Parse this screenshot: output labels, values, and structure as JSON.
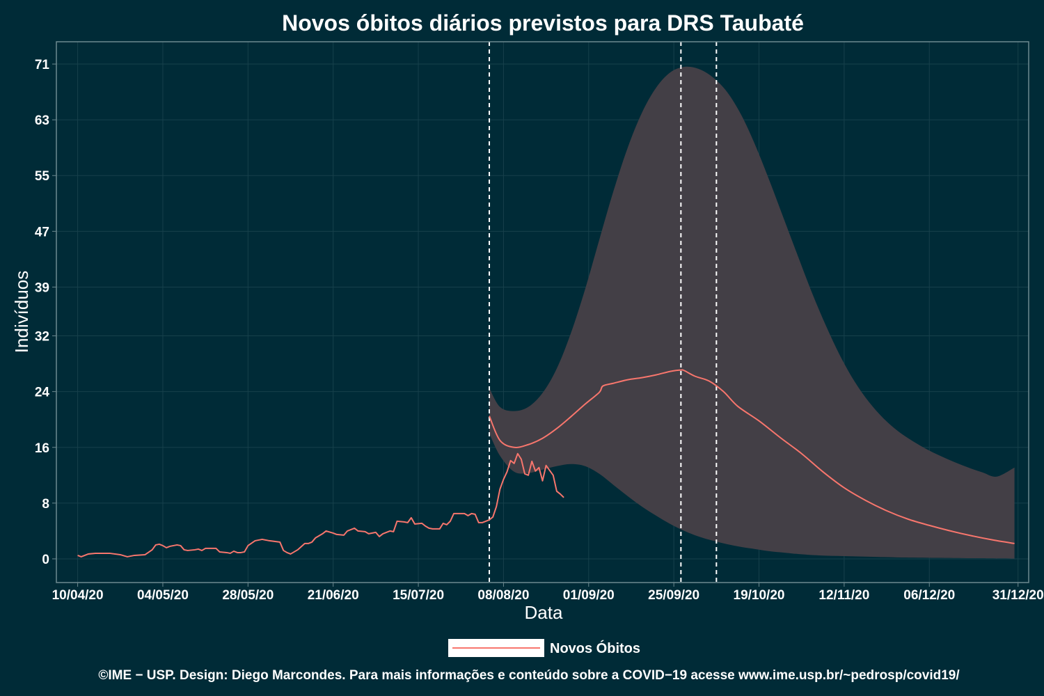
{
  "chart_data": {
    "type": "line",
    "title": "Novos óbitos diários previstos para DRS Taubaté",
    "xlabel": "Data",
    "ylabel": "Indivíduos",
    "x_tick_labels": [
      "10/04/20",
      "04/05/20",
      "28/05/20",
      "21/06/20",
      "15/07/20",
      "08/08/20",
      "01/09/20",
      "25/09/20",
      "19/10/20",
      "12/11/20",
      "06/12/20",
      "31/12/20"
    ],
    "y_ticks": [
      0,
      8,
      16,
      24,
      32,
      39,
      47,
      55,
      63,
      71
    ],
    "ylim": [
      -3.4,
      74.2
    ],
    "xlim": [
      "2020-04-04",
      "2021-01-03"
    ],
    "grid": true,
    "legend_position": "bottom",
    "vlines": [
      "2020-08-04",
      "2020-09-27",
      "2020-10-07"
    ],
    "colors": {
      "background": "#002b37",
      "line": "#f8766d",
      "band": "#433f46",
      "grid": "#17404b",
      "vline": "#ffffff"
    },
    "series": [
      {
        "name": "Novos Óbitos",
        "kind": "observed",
        "points": [
          [
            "2020-04-10",
            0.5
          ],
          [
            "2020-04-11",
            0.3
          ],
          [
            "2020-04-13",
            0.7
          ],
          [
            "2020-04-15",
            0.8
          ],
          [
            "2020-04-19",
            0.8
          ],
          [
            "2020-04-22",
            0.6
          ],
          [
            "2020-04-24",
            0.3
          ],
          [
            "2020-04-26",
            0.5
          ],
          [
            "2020-04-29",
            0.6
          ],
          [
            "2020-05-01",
            1.3
          ],
          [
            "2020-05-02",
            2.0
          ],
          [
            "2020-05-03",
            2.1
          ],
          [
            "2020-05-04",
            1.9
          ],
          [
            "2020-05-05",
            1.6
          ],
          [
            "2020-05-06",
            1.8
          ],
          [
            "2020-05-08",
            2.0
          ],
          [
            "2020-05-09",
            1.9
          ],
          [
            "2020-05-10",
            1.3
          ],
          [
            "2020-05-11",
            1.2
          ],
          [
            "2020-05-13",
            1.3
          ],
          [
            "2020-05-14",
            1.4
          ],
          [
            "2020-05-15",
            1.2
          ],
          [
            "2020-05-16",
            1.5
          ],
          [
            "2020-05-18",
            1.5
          ],
          [
            "2020-05-19",
            1.5
          ],
          [
            "2020-05-20",
            1.0
          ],
          [
            "2020-05-22",
            0.9
          ],
          [
            "2020-05-23",
            0.8
          ],
          [
            "2020-05-24",
            1.1
          ],
          [
            "2020-05-25",
            0.9
          ],
          [
            "2020-05-26",
            0.9
          ],
          [
            "2020-05-27",
            1.0
          ],
          [
            "2020-05-28",
            1.9
          ],
          [
            "2020-05-30",
            2.6
          ],
          [
            "2020-06-01",
            2.8
          ],
          [
            "2020-06-03",
            2.6
          ],
          [
            "2020-06-06",
            2.4
          ],
          [
            "2020-06-07",
            1.2
          ],
          [
            "2020-06-08",
            0.9
          ],
          [
            "2020-06-09",
            0.7
          ],
          [
            "2020-06-11",
            1.3
          ],
          [
            "2020-06-13",
            2.2
          ],
          [
            "2020-06-14",
            2.2
          ],
          [
            "2020-06-15",
            2.4
          ],
          [
            "2020-06-16",
            3.0
          ],
          [
            "2020-06-18",
            3.6
          ],
          [
            "2020-06-19",
            4.0
          ],
          [
            "2020-06-21",
            3.7
          ],
          [
            "2020-06-22",
            3.5
          ],
          [
            "2020-06-24",
            3.4
          ],
          [
            "2020-06-25",
            4.0
          ],
          [
            "2020-06-27",
            4.4
          ],
          [
            "2020-06-28",
            4.0
          ],
          [
            "2020-06-30",
            3.9
          ],
          [
            "2020-07-01",
            3.6
          ],
          [
            "2020-07-03",
            3.8
          ],
          [
            "2020-07-04",
            3.2
          ],
          [
            "2020-07-05",
            3.6
          ],
          [
            "2020-07-07",
            4.0
          ],
          [
            "2020-07-08",
            3.9
          ],
          [
            "2020-07-09",
            5.4
          ],
          [
            "2020-07-11",
            5.3
          ],
          [
            "2020-07-12",
            5.2
          ],
          [
            "2020-07-13",
            5.9
          ],
          [
            "2020-07-14",
            5.0
          ],
          [
            "2020-07-16",
            5.1
          ],
          [
            "2020-07-17",
            4.7
          ],
          [
            "2020-07-18",
            4.4
          ],
          [
            "2020-07-19",
            4.3
          ],
          [
            "2020-07-21",
            4.3
          ],
          [
            "2020-07-22",
            5.1
          ],
          [
            "2020-07-23",
            4.9
          ],
          [
            "2020-07-24",
            5.4
          ],
          [
            "2020-07-25",
            6.5
          ],
          [
            "2020-07-26",
            6.5
          ],
          [
            "2020-07-28",
            6.5
          ],
          [
            "2020-07-29",
            6.2
          ],
          [
            "2020-07-30",
            6.5
          ],
          [
            "2020-07-31",
            6.4
          ],
          [
            "2020-08-01",
            5.2
          ],
          [
            "2020-08-02",
            5.2
          ],
          [
            "2020-08-04",
            5.6
          ],
          [
            "2020-08-05",
            6.0
          ],
          [
            "2020-08-06",
            7.5
          ],
          [
            "2020-08-07",
            10.0
          ],
          [
            "2020-08-08",
            11.4
          ],
          [
            "2020-08-09",
            12.5
          ],
          [
            "2020-08-10",
            14.1
          ],
          [
            "2020-08-11",
            13.7
          ],
          [
            "2020-08-12",
            15.1
          ],
          [
            "2020-08-13",
            14.3
          ],
          [
            "2020-08-14",
            12.2
          ],
          [
            "2020-08-15",
            12.0
          ],
          [
            "2020-08-16",
            14.0
          ],
          [
            "2020-08-17",
            12.6
          ],
          [
            "2020-08-18",
            13.1
          ],
          [
            "2020-08-19",
            11.2
          ],
          [
            "2020-08-20",
            13.4
          ],
          [
            "2020-08-21",
            12.7
          ],
          [
            "2020-08-22",
            12.0
          ],
          [
            "2020-08-23",
            9.7
          ],
          [
            "2020-08-24",
            9.3
          ],
          [
            "2020-08-25",
            8.8
          ]
        ]
      },
      {
        "name": "Novos Óbitos",
        "kind": "forecast",
        "points": [
          [
            "2020-08-04",
            20.5
          ],
          [
            "2020-08-07",
            17.0
          ],
          [
            "2020-08-11",
            16.0
          ],
          [
            "2020-08-15",
            16.4
          ],
          [
            "2020-08-19",
            17.3
          ],
          [
            "2020-08-23",
            18.7
          ],
          [
            "2020-08-27",
            20.4
          ],
          [
            "2020-08-31",
            22.2
          ],
          [
            "2020-09-04",
            23.9
          ],
          [
            "2020-09-05",
            24.8
          ],
          [
            "2020-09-08",
            25.2
          ],
          [
            "2020-09-12",
            25.7
          ],
          [
            "2020-09-16",
            26.0
          ],
          [
            "2020-09-20",
            26.4
          ],
          [
            "2020-09-24",
            26.9
          ],
          [
            "2020-09-27",
            27.1
          ],
          [
            "2020-09-28",
            27.0
          ],
          [
            "2020-10-01",
            26.2
          ],
          [
            "2020-10-05",
            25.5
          ],
          [
            "2020-10-09",
            24.0
          ],
          [
            "2020-10-13",
            21.9
          ],
          [
            "2020-10-19",
            19.8
          ],
          [
            "2020-10-25",
            17.4
          ],
          [
            "2020-10-31",
            15.1
          ],
          [
            "2020-11-06",
            12.5
          ],
          [
            "2020-11-12",
            10.2
          ],
          [
            "2020-11-18",
            8.4
          ],
          [
            "2020-11-24",
            6.9
          ],
          [
            "2020-11-30",
            5.7
          ],
          [
            "2020-12-06",
            4.8
          ],
          [
            "2020-12-12",
            4.0
          ],
          [
            "2020-12-18",
            3.3
          ],
          [
            "2020-12-24",
            2.7
          ],
          [
            "2020-12-30",
            2.2
          ]
        ]
      }
    ],
    "band": {
      "upper": [
        [
          "2020-08-04",
          24.5
        ],
        [
          "2020-08-07",
          21.8
        ],
        [
          "2020-08-11",
          21.2
        ],
        [
          "2020-08-15",
          21.8
        ],
        [
          "2020-08-19",
          23.8
        ],
        [
          "2020-08-23",
          27.3
        ],
        [
          "2020-08-27",
          32.4
        ],
        [
          "2020-08-31",
          38.7
        ],
        [
          "2020-09-04",
          45.8
        ],
        [
          "2020-09-08",
          52.8
        ],
        [
          "2020-09-12",
          59.0
        ],
        [
          "2020-09-16",
          64.0
        ],
        [
          "2020-09-20",
          67.6
        ],
        [
          "2020-09-24",
          69.8
        ],
        [
          "2020-09-28",
          70.6
        ],
        [
          "2020-10-02",
          70.3
        ],
        [
          "2020-10-06",
          69.1
        ],
        [
          "2020-10-10",
          67.0
        ],
        [
          "2020-10-14",
          63.7
        ],
        [
          "2020-10-18",
          59.3
        ],
        [
          "2020-10-22",
          54.2
        ],
        [
          "2020-10-26",
          48.8
        ],
        [
          "2020-10-30",
          43.4
        ],
        [
          "2020-11-03",
          38.1
        ],
        [
          "2020-11-07",
          33.3
        ],
        [
          "2020-11-11",
          29.0
        ],
        [
          "2020-11-15",
          25.4
        ],
        [
          "2020-11-19",
          22.5
        ],
        [
          "2020-11-23",
          20.2
        ],
        [
          "2020-11-27",
          18.4
        ],
        [
          "2020-12-01",
          17.0
        ],
        [
          "2020-12-05",
          15.8
        ],
        [
          "2020-12-09",
          14.8
        ],
        [
          "2020-12-13",
          13.9
        ],
        [
          "2020-12-17",
          13.1
        ],
        [
          "2020-12-21",
          12.4
        ],
        [
          "2020-12-25",
          11.8
        ],
        [
          "2020-12-30",
          13.1
        ]
      ],
      "lower": [
        [
          "2020-08-04",
          18.0
        ],
        [
          "2020-08-07",
          14.8
        ],
        [
          "2020-08-11",
          12.5
        ],
        [
          "2020-08-15",
          12.3
        ],
        [
          "2020-08-19",
          12.8
        ],
        [
          "2020-08-23",
          13.3
        ],
        [
          "2020-08-27",
          13.6
        ],
        [
          "2020-08-31",
          13.3
        ],
        [
          "2020-09-04",
          12.2
        ],
        [
          "2020-09-08",
          10.6
        ],
        [
          "2020-09-12",
          9.0
        ],
        [
          "2020-09-16",
          7.5
        ],
        [
          "2020-09-20",
          6.2
        ],
        [
          "2020-09-24",
          5.0
        ],
        [
          "2020-09-28",
          4.0
        ],
        [
          "2020-10-02",
          3.2
        ],
        [
          "2020-10-06",
          2.6
        ],
        [
          "2020-10-10",
          2.1
        ],
        [
          "2020-10-14",
          1.7
        ],
        [
          "2020-10-18",
          1.4
        ],
        [
          "2020-10-22",
          1.1
        ],
        [
          "2020-10-26",
          0.9
        ],
        [
          "2020-10-30",
          0.7
        ],
        [
          "2020-11-05",
          0.5
        ],
        [
          "2020-11-12",
          0.4
        ],
        [
          "2020-11-20",
          0.3
        ],
        [
          "2020-11-28",
          0.2
        ],
        [
          "2020-12-08",
          0.15
        ],
        [
          "2020-12-18",
          0.1
        ],
        [
          "2020-12-30",
          0.05
        ]
      ]
    }
  },
  "legend": {
    "label": "Novos Óbitos"
  },
  "caption": "©IME − USP. Design: Diego Marcondes. Para mais informações e conteúdo sobre a COVID−19 acesse www.ime.usp.br/~pedrosp/covid19/"
}
